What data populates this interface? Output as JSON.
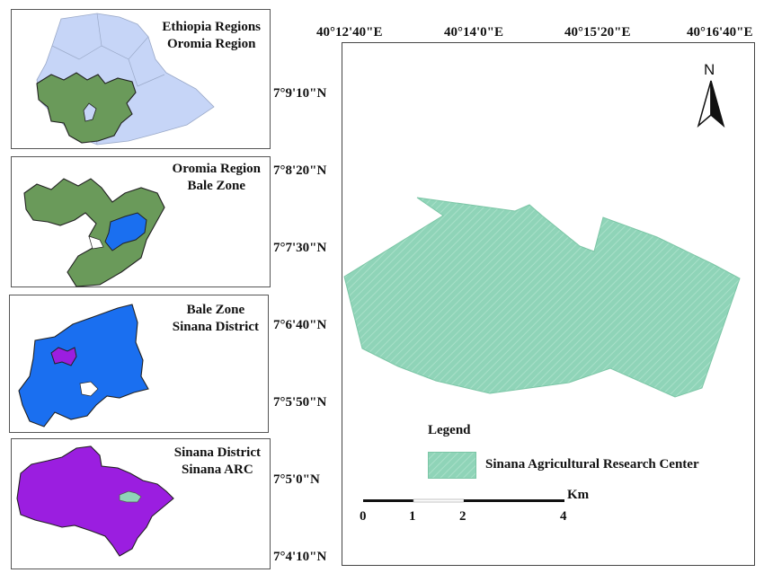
{
  "colors": {
    "ethiopia_fill": "#c6d5f7",
    "oromia_fill": "#6a9a5a",
    "bale_fill": "#1a6ff0",
    "sinana_fill": "#9b1ee0",
    "arc_fill": "#8fd4b8",
    "region_stroke": "#222222"
  },
  "insets": [
    {
      "title_line1": "Ethiopia Regions",
      "title_line2": "Oromia Region"
    },
    {
      "title_line1": "Oromia Region",
      "title_line2": "Bale Zone"
    },
    {
      "title_line1": "Bale Zone",
      "title_line2": "Sinana District"
    },
    {
      "title_line1": "Sinana District",
      "title_line2": "Sinana ARC"
    }
  ],
  "main_map": {
    "longitude_labels": [
      "40°12'40\"E",
      "40°14'0\"E",
      "40°15'20\"E",
      "40°16'40\"E"
    ],
    "latitude_labels": [
      "7°9'10\"N",
      "7°8'20\"N",
      "7°7'30\"N",
      "7°6'40\"N",
      "7°5'50\"N",
      "7°5'0\"N",
      "7°4'10\"N"
    ],
    "north_label": "N",
    "legend": {
      "title": "Legend",
      "item_label": "Sinana Agricultural Research Center"
    },
    "scale_bar": {
      "ticks": [
        "0",
        "1",
        "2",
        "4"
      ],
      "unit": "Km"
    }
  }
}
